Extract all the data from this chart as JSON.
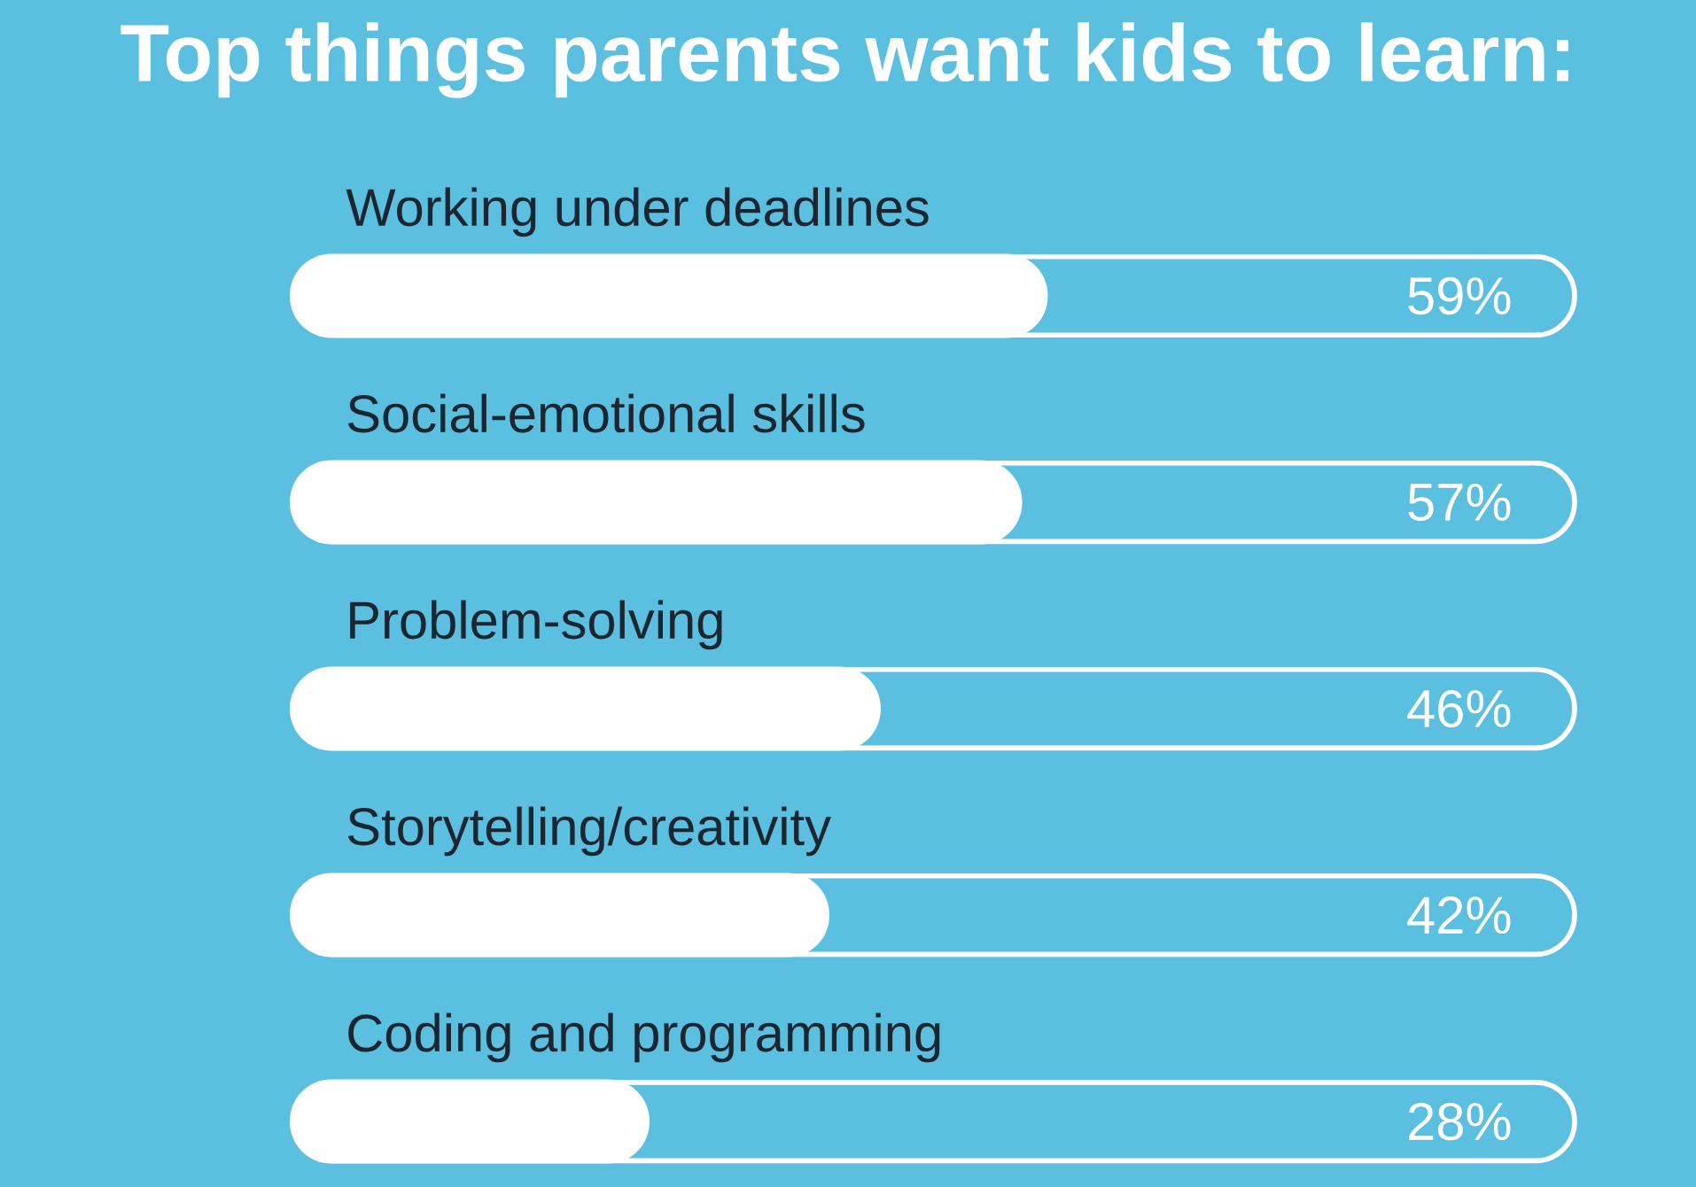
{
  "chart_data": {
    "type": "bar",
    "orientation": "horizontal",
    "title": "Top things parents want kids to learn:",
    "categories": [
      "Working under deadlines",
      "Social-emotional skills",
      "Problem-solving",
      "Storytelling/creativity",
      "Coding and programming"
    ],
    "values": [
      59,
      57,
      46,
      42,
      28
    ],
    "value_labels": [
      "59%",
      "57%",
      "46%",
      "42%",
      "28%"
    ],
    "color": "#ffffff",
    "xlim": [
      0,
      100
    ]
  }
}
